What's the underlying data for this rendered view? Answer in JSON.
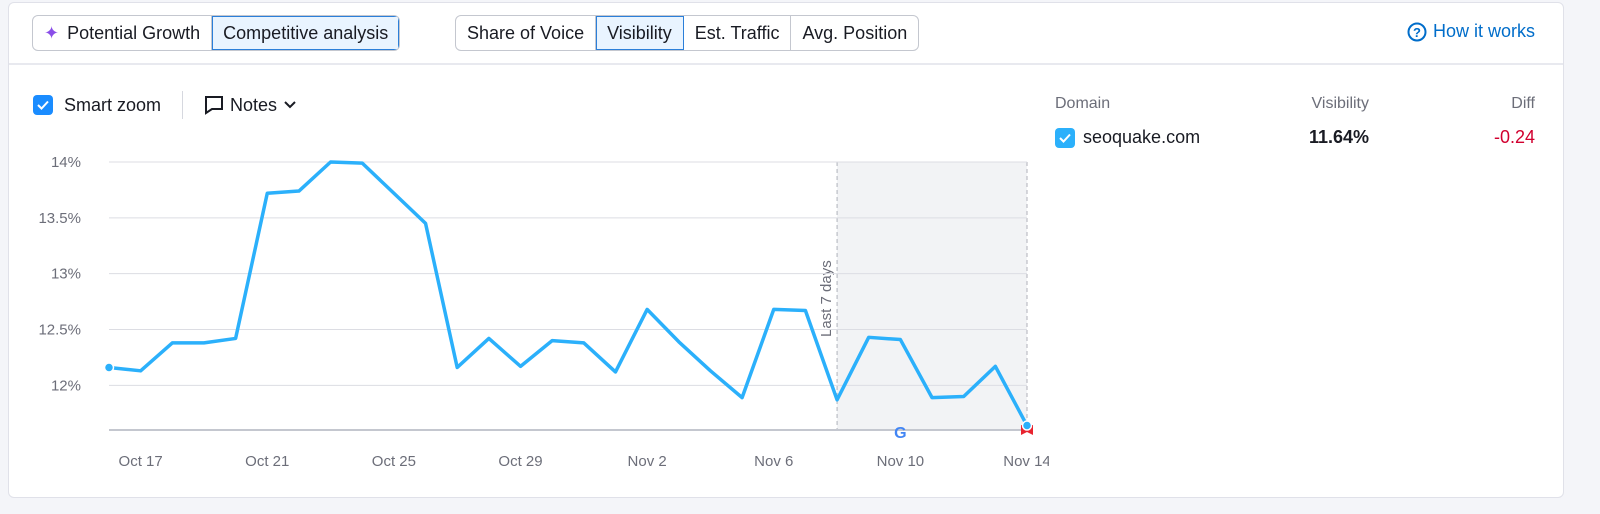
{
  "tabs_mode": [
    {
      "label": "Potential Growth",
      "icon": "sparkle-icon",
      "active": false
    },
    {
      "label": "Competitive analysis",
      "active": true
    }
  ],
  "tabs_metric": [
    {
      "label": "Share of Voice",
      "active": false
    },
    {
      "label": "Visibility",
      "active": true
    },
    {
      "label": "Est. Traffic",
      "active": false
    },
    {
      "label": "Avg. Position",
      "active": false
    }
  ],
  "how_it_works": "How it works",
  "controls": {
    "smart_zoom": "Smart zoom",
    "smart_zoom_checked": true,
    "notes": "Notes"
  },
  "legend": {
    "headers": {
      "domain": "Domain",
      "visibility": "Visibility",
      "diff": "Diff"
    },
    "row": {
      "domain": "seoquake.com",
      "visibility": "11.64%",
      "diff": "-0.24",
      "checked": true
    }
  },
  "colors": {
    "line": "#2bb0fb",
    "accent": "#1a8cff",
    "negative": "#d1002f"
  },
  "chart_data": {
    "type": "line",
    "ylim": [
      11.6,
      14
    ],
    "yticks": [
      "14%",
      "13.5%",
      "13%",
      "12.5%",
      "12%"
    ],
    "ytick_values": [
      14,
      13.5,
      13,
      12.5,
      12
    ],
    "xtick_labels": [
      "Oct 17",
      "Oct 21",
      "Oct 25",
      "Oct 29",
      "Nov 2",
      "Nov 6",
      "Nov 10",
      "Nov 14"
    ],
    "xtick_index": [
      1,
      5,
      9,
      13,
      17,
      21,
      25,
      29
    ],
    "highlight": {
      "label": "Last 7 days",
      "from_index": 23,
      "to_index": 29
    },
    "markers": [
      {
        "index": 25,
        "icon": "google-icon"
      },
      {
        "index": 29,
        "icon": "flag-icon"
      }
    ],
    "x": [
      "Oct 16",
      "Oct 17",
      "Oct 18",
      "Oct 19",
      "Oct 20",
      "Oct 21",
      "Oct 22",
      "Oct 23",
      "Oct 24",
      "Oct 25",
      "Oct 26",
      "Oct 27",
      "Oct 28",
      "Oct 29",
      "Oct 30",
      "Oct 31",
      "Nov 1",
      "Nov 2",
      "Nov 3",
      "Nov 4",
      "Nov 5",
      "Nov 6",
      "Nov 7",
      "Nov 8",
      "Nov 9",
      "Nov 10",
      "Nov 11",
      "Nov 12",
      "Nov 13",
      "Nov 14"
    ],
    "series": [
      {
        "name": "seoquake.com",
        "values": [
          12.16,
          12.13,
          12.38,
          12.38,
          12.42,
          13.72,
          13.74,
          14.0,
          13.99,
          13.72,
          13.45,
          12.16,
          12.42,
          12.17,
          12.4,
          12.38,
          12.12,
          12.68,
          12.39,
          12.13,
          11.89,
          12.68,
          12.67,
          11.87,
          12.43,
          12.41,
          11.89,
          11.9,
          12.17,
          11.64
        ]
      }
    ]
  }
}
